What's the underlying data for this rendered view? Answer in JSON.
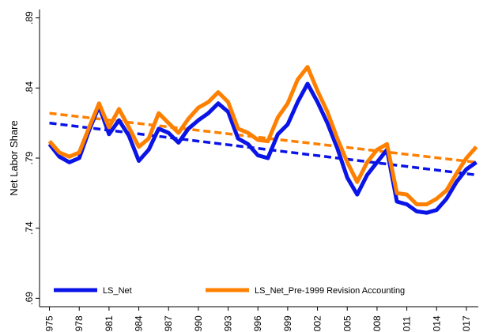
{
  "chart_data": {
    "type": "line",
    "y_label": "Net Labor Share",
    "x": [
      1975,
      1976,
      1977,
      1978,
      1979,
      1980,
      1981,
      1982,
      1983,
      1984,
      1985,
      1986,
      1987,
      1988,
      1989,
      1990,
      1991,
      1992,
      1993,
      1994,
      1995,
      1996,
      1997,
      1998,
      1999,
      2000,
      2001,
      2002,
      2003,
      2004,
      2005,
      2006,
      2007,
      2008,
      2009,
      2010,
      2011,
      2012,
      2013,
      2014,
      2015,
      2016,
      2017,
      2018
    ],
    "series": [
      {
        "name": "LS_Net",
        "color": "#0a14e6",
        "values": [
          0.8,
          0.791,
          0.787,
          0.79,
          0.81,
          0.827,
          0.807,
          0.817,
          0.806,
          0.788,
          0.796,
          0.811,
          0.808,
          0.801,
          0.811,
          0.817,
          0.822,
          0.829,
          0.823,
          0.804,
          0.8,
          0.792,
          0.79,
          0.807,
          0.814,
          0.83,
          0.843,
          0.83,
          0.815,
          0.797,
          0.776,
          0.764,
          0.778,
          0.787,
          0.796,
          0.759,
          0.757,
          0.752,
          0.751,
          0.753,
          0.761,
          0.773,
          0.782,
          0.787
        ],
        "trend": [
          0.815,
          0.778
        ]
      },
      {
        "name": "LS_Net_Pre-1999 Revision Accounting",
        "color": "#ff8000",
        "values": [
          0.802,
          0.794,
          0.791,
          0.794,
          0.812,
          0.829,
          0.812,
          0.825,
          0.812,
          0.798,
          0.804,
          0.822,
          0.815,
          0.808,
          0.818,
          0.826,
          0.83,
          0.837,
          0.83,
          0.811,
          0.808,
          0.803,
          0.802,
          0.819,
          0.829,
          0.846,
          0.855,
          0.838,
          0.823,
          0.804,
          0.787,
          0.773,
          0.787,
          0.796,
          0.8,
          0.765,
          0.764,
          0.757,
          0.757,
          0.761,
          0.767,
          0.779,
          0.79,
          0.798
        ],
        "trend": [
          0.822,
          0.787
        ]
      }
    ],
    "xlim": [
      1974,
      2018.2
    ],
    "xticks": [
      1975,
      1978,
      1981,
      1984,
      1987,
      1990,
      1993,
      1996,
      1999,
      2002,
      2005,
      2008,
      2011,
      2014,
      2017
    ],
    "ylim": [
      0.684,
      0.896
    ],
    "yticks": [
      {
        "value": 0.69,
        "label": ".69"
      },
      {
        "value": 0.74,
        "label": ".74"
      },
      {
        "value": 0.79,
        "label": ".79"
      },
      {
        "value": 0.84,
        "label": ".84"
      },
      {
        "value": 0.89,
        "label": ".89"
      }
    ],
    "legend": "lower left"
  }
}
